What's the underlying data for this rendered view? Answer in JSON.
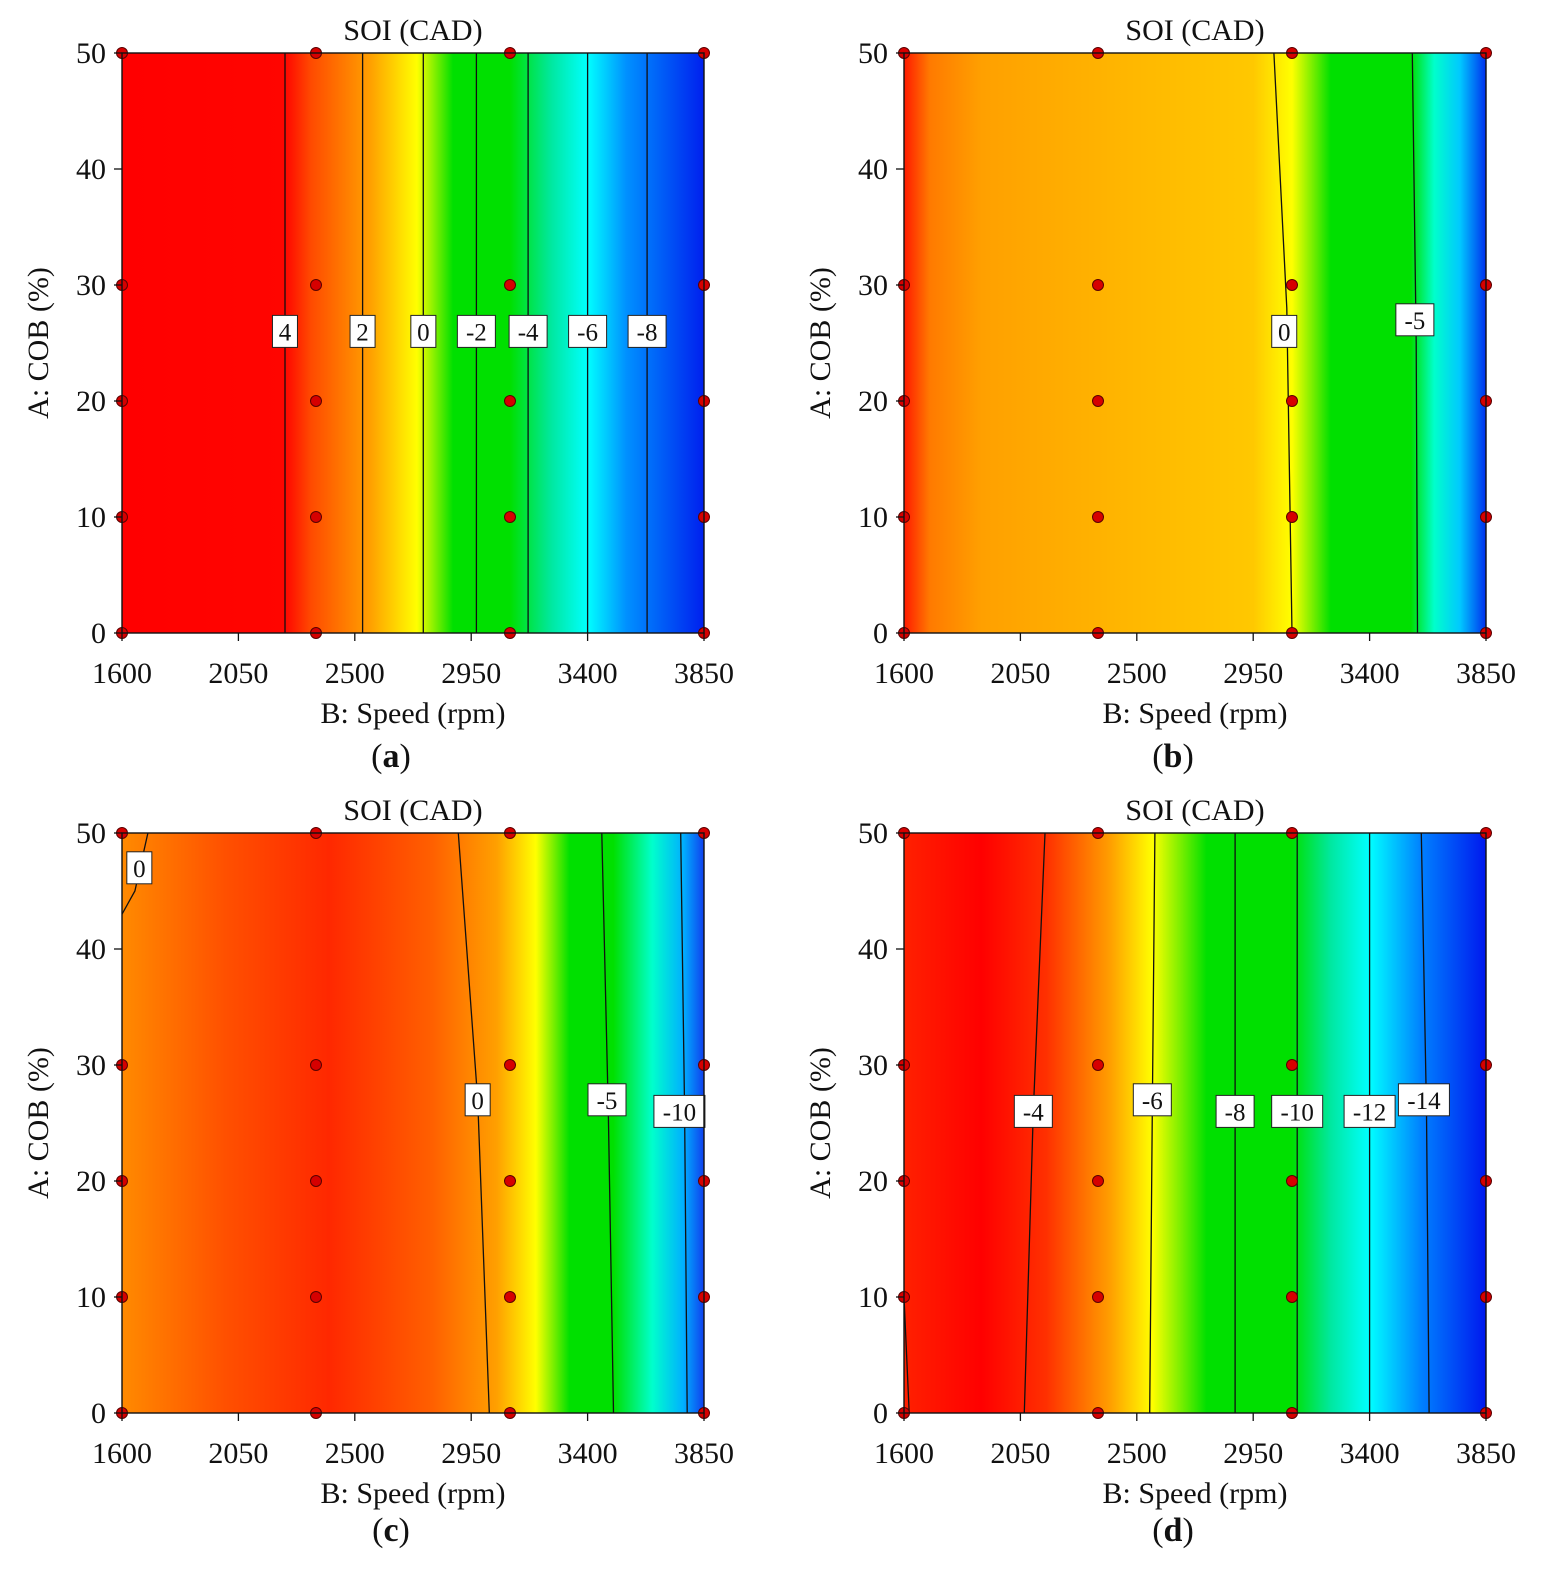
{
  "figure": {
    "panels": [
      {
        "id": "a",
        "caption_letter": "a"
      },
      {
        "id": "b",
        "caption_letter": "b"
      },
      {
        "id": "c",
        "caption_letter": "c"
      },
      {
        "id": "d",
        "caption_letter": "d"
      }
    ]
  },
  "chart_data": [
    {
      "type": "contour",
      "panel": "a",
      "title": "SOI  (CAD)",
      "xlabel": "B: Speed  (rpm)",
      "ylabel": "A: COB (%)",
      "xlim": [
        1600,
        3850
      ],
      "ylim": [
        0,
        50
      ],
      "x_ticks": [
        1600,
        2050,
        2500,
        2950,
        3400,
        3850
      ],
      "y_ticks": [
        0,
        10,
        20,
        30,
        40,
        50
      ],
      "color_stops": [
        {
          "speed": 1600,
          "color": "#ff0000"
        },
        {
          "speed": 2230,
          "color": "#ff0500"
        },
        {
          "speed": 2330,
          "color": "#ff4a00"
        },
        {
          "speed": 2560,
          "color": "#ffa000"
        },
        {
          "speed": 2740,
          "color": "#ffff00"
        },
        {
          "speed": 2880,
          "color": "#00e000"
        },
        {
          "speed": 3100,
          "color": "#00e000"
        },
        {
          "speed": 3260,
          "color": "#00e8a0"
        },
        {
          "speed": 3400,
          "color": "#00ffff"
        },
        {
          "speed": 3550,
          "color": "#0090ff"
        },
        {
          "speed": 3850,
          "color": "#0020ee"
        }
      ],
      "contours": [
        {
          "level": "4",
          "line": [
            [
              2230,
              0
            ],
            [
              2230,
              50
            ]
          ],
          "label_at": [
            2230,
            26
          ]
        },
        {
          "level": "2",
          "line": [
            [
              2530,
              0
            ],
            [
              2530,
              50
            ]
          ],
          "label_at": [
            2530,
            26
          ]
        },
        {
          "level": "0",
          "line": [
            [
              2765,
              0
            ],
            [
              2765,
              50
            ]
          ],
          "label_at": [
            2765,
            26
          ]
        },
        {
          "level": "-2",
          "line": [
            [
              2970,
              0
            ],
            [
              2970,
              50
            ]
          ],
          "label_at": [
            2970,
            26
          ]
        },
        {
          "level": "-4",
          "line": [
            [
              3170,
              0
            ],
            [
              3170,
              50
            ]
          ],
          "label_at": [
            3170,
            26
          ]
        },
        {
          "level": "-6",
          "line": [
            [
              3400,
              0
            ],
            [
              3400,
              50
            ]
          ],
          "label_at": [
            3400,
            26
          ]
        },
        {
          "level": "-8",
          "line": [
            [
              3630,
              0
            ],
            [
              3630,
              50
            ]
          ],
          "label_at": [
            3630,
            26
          ]
        }
      ],
      "design_points": [
        [
          1600,
          0
        ],
        [
          1600,
          10
        ],
        [
          1600,
          20
        ],
        [
          1600,
          30
        ],
        [
          1600,
          50
        ],
        [
          2350,
          0
        ],
        [
          2350,
          10
        ],
        [
          2350,
          20
        ],
        [
          2350,
          30
        ],
        [
          2350,
          50
        ],
        [
          3100,
          0
        ],
        [
          3100,
          10
        ],
        [
          3100,
          20
        ],
        [
          3100,
          30
        ],
        [
          3100,
          50
        ],
        [
          3850,
          0
        ],
        [
          3850,
          10
        ],
        [
          3850,
          20
        ],
        [
          3850,
          30
        ],
        [
          3850,
          50
        ]
      ]
    },
    {
      "type": "contour",
      "panel": "b",
      "title": "SOI  (CAD)",
      "xlabel": "B: Speed  (rpm)",
      "ylabel": "A: COB (%)",
      "xlim": [
        1600,
        3850
      ],
      "ylim": [
        0,
        50
      ],
      "x_ticks": [
        1600,
        2050,
        2500,
        2950,
        3400,
        3850
      ],
      "y_ticks": [
        0,
        10,
        20,
        30,
        40,
        50
      ],
      "color_stops": [
        {
          "speed": 1600,
          "color": "#ff1a00"
        },
        {
          "speed": 1700,
          "color": "#ff7a00"
        },
        {
          "speed": 1900,
          "color": "#ffa000"
        },
        {
          "speed": 2500,
          "color": "#ffb800"
        },
        {
          "speed": 2950,
          "color": "#ffc800"
        },
        {
          "speed": 3100,
          "color": "#ffff00"
        },
        {
          "speed": 3250,
          "color": "#00e000"
        },
        {
          "speed": 3560,
          "color": "#00e000"
        },
        {
          "speed": 3650,
          "color": "#00ffcc"
        },
        {
          "speed": 3750,
          "color": "#00c8ff"
        },
        {
          "speed": 3850,
          "color": "#0030ee"
        }
      ],
      "contours": [
        {
          "level": "0",
          "line": [
            [
              3030,
              50
            ],
            [
              3080,
              28
            ],
            [
              3100,
              0
            ]
          ],
          "label_at": [
            3070,
            26
          ]
        },
        {
          "level": "-5",
          "line": [
            [
              3565,
              50
            ],
            [
              3580,
              25
            ],
            [
              3585,
              0
            ]
          ],
          "label_at": [
            3575,
            27
          ]
        }
      ],
      "design_points": [
        [
          1600,
          0
        ],
        [
          1600,
          10
        ],
        [
          1600,
          20
        ],
        [
          1600,
          30
        ],
        [
          1600,
          50
        ],
        [
          2350,
          0
        ],
        [
          2350,
          10
        ],
        [
          2350,
          20
        ],
        [
          2350,
          30
        ],
        [
          2350,
          50
        ],
        [
          3100,
          0
        ],
        [
          3100,
          10
        ],
        [
          3100,
          20
        ],
        [
          3100,
          30
        ],
        [
          3100,
          50
        ],
        [
          3850,
          0
        ],
        [
          3850,
          10
        ],
        [
          3850,
          20
        ],
        [
          3850,
          30
        ],
        [
          3850,
          50
        ]
      ]
    },
    {
      "type": "contour",
      "panel": "c",
      "title": "SOI  (CAD)",
      "xlabel": "B: Speed  (rpm)",
      "ylabel": "A: COB (%)",
      "xlim": [
        1600,
        3850
      ],
      "ylim": [
        0,
        50
      ],
      "x_ticks": [
        1600,
        2050,
        2500,
        2950,
        3400,
        3850
      ],
      "y_ticks": [
        0,
        10,
        20,
        30,
        40,
        50
      ],
      "color_stops": [
        {
          "speed": 1600,
          "color": "#ff8a00"
        },
        {
          "speed": 2000,
          "color": "#ff5000"
        },
        {
          "speed": 2400,
          "color": "#ff2800"
        },
        {
          "speed": 2800,
          "color": "#ff6000"
        },
        {
          "speed": 3050,
          "color": "#ffa000"
        },
        {
          "speed": 3200,
          "color": "#ffff00"
        },
        {
          "speed": 3330,
          "color": "#00e000"
        },
        {
          "speed": 3500,
          "color": "#00e000"
        },
        {
          "speed": 3650,
          "color": "#00ffcc"
        },
        {
          "speed": 3770,
          "color": "#00b0ff"
        },
        {
          "speed": 3850,
          "color": "#1040ee"
        }
      ],
      "contours": [
        {
          "level": "0",
          "line": [
            [
              2900,
              50
            ],
            [
              2975,
              27
            ],
            [
              3020,
              0
            ]
          ],
          "label_at": [
            2975,
            27
          ]
        },
        {
          "level": "-5",
          "line": [
            [
              3455,
              50
            ],
            [
              3480,
              26
            ],
            [
              3500,
              0
            ]
          ],
          "label_at": [
            3475,
            27
          ]
        },
        {
          "level": "-10",
          "line": [
            [
              3760,
              50
            ],
            [
              3775,
              26
            ],
            [
              3785,
              0
            ]
          ],
          "label_at": [
            3755,
            26
          ]
        },
        {
          "level": "0",
          "line": [
            [
              1600,
              43
            ],
            [
              1650,
              45
            ],
            [
              1680,
              48
            ],
            [
              1700,
              50
            ]
          ],
          "label_at": [
            1667,
            47
          ]
        }
      ],
      "design_points": [
        [
          1600,
          0
        ],
        [
          1600,
          10
        ],
        [
          1600,
          20
        ],
        [
          1600,
          30
        ],
        [
          1600,
          50
        ],
        [
          2350,
          0
        ],
        [
          2350,
          10
        ],
        [
          2350,
          20
        ],
        [
          2350,
          30
        ],
        [
          2350,
          50
        ],
        [
          3100,
          0
        ],
        [
          3100,
          10
        ],
        [
          3100,
          20
        ],
        [
          3100,
          30
        ],
        [
          3100,
          50
        ],
        [
          3850,
          0
        ],
        [
          3850,
          10
        ],
        [
          3850,
          20
        ],
        [
          3850,
          30
        ],
        [
          3850,
          50
        ]
      ]
    },
    {
      "type": "contour",
      "panel": "d",
      "title": "SOI  (CAD)",
      "xlabel": "B: Speed  (rpm)",
      "ylabel": "A: COB (%)",
      "xlim": [
        1600,
        3850
      ],
      "ylim": [
        0,
        50
      ],
      "x_ticks": [
        1600,
        2050,
        2500,
        2950,
        3400,
        3850
      ],
      "y_ticks": [
        0,
        10,
        20,
        30,
        40,
        50
      ],
      "color_stops": [
        {
          "speed": 1600,
          "color": "#ff2000"
        },
        {
          "speed": 1900,
          "color": "#ff0000"
        },
        {
          "speed": 2150,
          "color": "#ff3000"
        },
        {
          "speed": 2400,
          "color": "#ffa000"
        },
        {
          "speed": 2560,
          "color": "#ffff00"
        },
        {
          "speed": 2770,
          "color": "#00e000"
        },
        {
          "speed": 3100,
          "color": "#00e000"
        },
        {
          "speed": 3250,
          "color": "#00e8a0"
        },
        {
          "speed": 3400,
          "color": "#00ffff"
        },
        {
          "speed": 3600,
          "color": "#0080ff"
        },
        {
          "speed": 3850,
          "color": "#0018ee"
        }
      ],
      "contours": [
        {
          "level": "-4",
          "line": [
            [
              2145,
              50
            ],
            [
              2100,
              26
            ],
            [
              2065,
              0
            ]
          ],
          "label_at": [
            2100,
            26
          ]
        },
        {
          "level": "-6",
          "line": [
            [
              2570,
              50
            ],
            [
              2560,
              26
            ],
            [
              2550,
              0
            ]
          ],
          "label_at": [
            2560,
            27
          ]
        },
        {
          "level": "-8",
          "line": [
            [
              2880,
              50
            ],
            [
              2880,
              0
            ]
          ],
          "label_at": [
            2880,
            26
          ]
        },
        {
          "level": "-10",
          "line": [
            [
              3120,
              50
            ],
            [
              3120,
              0
            ]
          ],
          "label_at": [
            3120,
            26
          ]
        },
        {
          "level": "-12",
          "line": [
            [
              3400,
              50
            ],
            [
              3400,
              0
            ]
          ],
          "label_at": [
            3400,
            26
          ]
        },
        {
          "level": "-14",
          "line": [
            [
              3600,
              50
            ],
            [
              3620,
              26
            ],
            [
              3630,
              0
            ]
          ],
          "label_at": [
            3610,
            27
          ]
        },
        {
          "level": "",
          "line": [
            [
              1600,
              10
            ],
            [
              1620,
              0
            ]
          ],
          "label_at": null
        }
      ],
      "design_points": [
        [
          1600,
          0
        ],
        [
          1600,
          10
        ],
        [
          1600,
          20
        ],
        [
          1600,
          30
        ],
        [
          1600,
          50
        ],
        [
          2350,
          0
        ],
        [
          2350,
          10
        ],
        [
          2350,
          20
        ],
        [
          2350,
          30
        ],
        [
          2350,
          50
        ],
        [
          3100,
          0
        ],
        [
          3100,
          10
        ],
        [
          3100,
          20
        ],
        [
          3100,
          30
        ],
        [
          3100,
          50
        ],
        [
          3850,
          0
        ],
        [
          3850,
          10
        ],
        [
          3850,
          20
        ],
        [
          3850,
          30
        ],
        [
          3850,
          50
        ]
      ]
    }
  ]
}
